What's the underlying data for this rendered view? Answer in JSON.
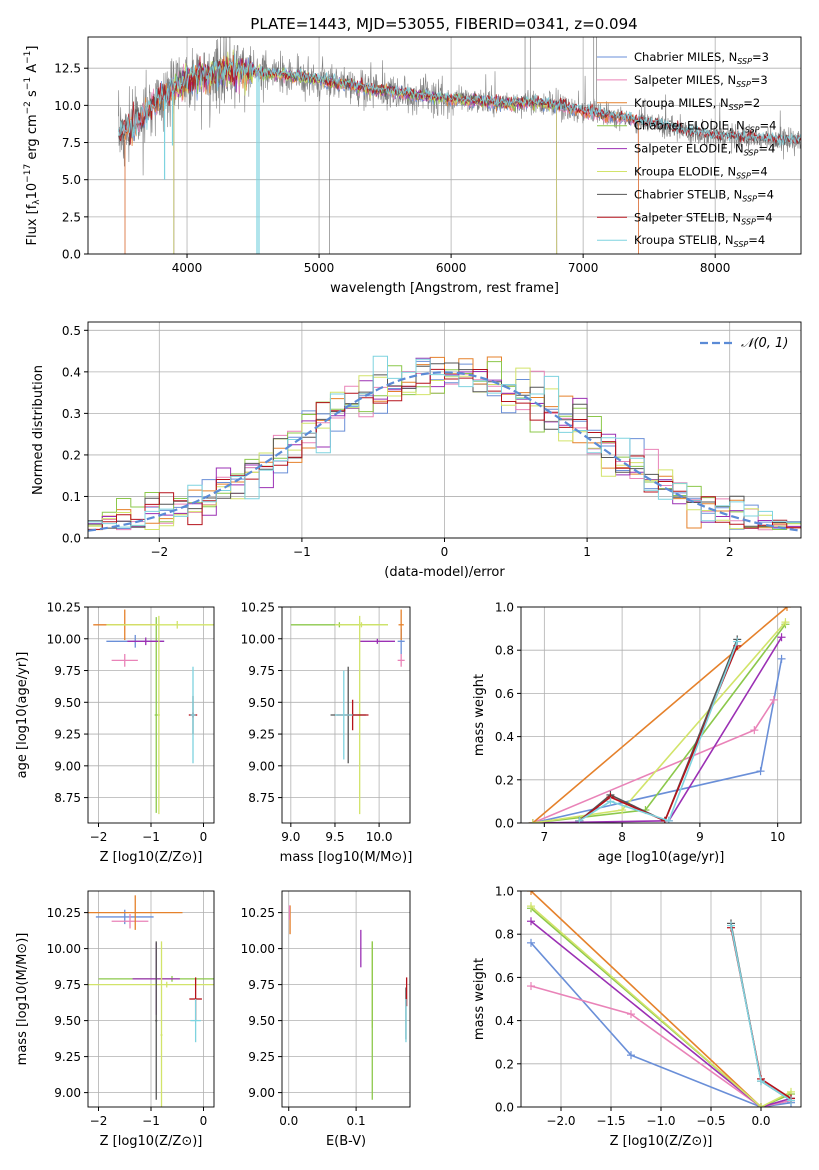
{
  "figure_title": "PLATE=1443, MJD=53055, FIBERID=0341, z=0.094",
  "colors": {
    "Chabrier MILES": "#6a8fd8",
    "Salpeter MILES": "#e983b8",
    "Kroupa MILES": "#e5812b",
    "Chabrier ELODIE": "#8cc84b",
    "Salpeter ELODIE": "#9b30b4",
    "Kroupa ELODIE": "#d2e46a",
    "Chabrier STELIB": "#555555",
    "Salpeter STELIB": "#b5121b",
    "Kroupa STELIB": "#7ed3df",
    "data": "#808080",
    "normal": "#5b8bd6"
  },
  "chart_data": [
    {
      "id": "spectrum",
      "type": "line",
      "title": "",
      "xlabel": "wavelength [Angstrom, rest frame]",
      "ylabel": "Flux [f",
      "xlim": [
        3250,
        8650
      ],
      "ylim": [
        0,
        14.6
      ],
      "xticks": [
        4000,
        5000,
        6000,
        7000,
        8000
      ],
      "yticks": [
        0.0,
        2.5,
        5.0,
        7.5,
        10.0,
        12.5
      ],
      "legend": {
        "position": "top-right",
        "entries": [
          {
            "name": "Chabrier MILES, N",
            "sub": "SSP",
            "suffix": "=3"
          },
          {
            "name": "Salpeter MILES, N",
            "sub": "SSP",
            "suffix": "=3"
          },
          {
            "name": "Kroupa MILES, N",
            "sub": "SSP",
            "suffix": "=2"
          },
          {
            "name": "Chabrier ELODIE, N",
            "sub": "SSP",
            "suffix": "=4"
          },
          {
            "name": "Salpeter ELODIE, N",
            "sub": "SSP",
            "suffix": "=4"
          },
          {
            "name": "Kroupa ELODIE, N",
            "sub": "SSP",
            "suffix": "=4"
          },
          {
            "name": "Chabrier STELIB, N",
            "sub": "SSP",
            "suffix": "=4"
          },
          {
            "name": "Salpeter STELIB, N",
            "sub": "SSP",
            "suffix": "=4"
          },
          {
            "name": "Kroupa STELIB, N",
            "sub": "SSP",
            "suffix": "=4"
          }
        ]
      },
      "continuum_x": [
        3480,
        3600,
        3800,
        4000,
        4200,
        4400,
        4600,
        4800,
        5000,
        5200,
        5400,
        5600,
        5800,
        6000,
        6200,
        6400,
        6600,
        6800,
        7000,
        7200,
        7400,
        7600,
        7800,
        8000,
        8200,
        8400,
        8600
      ],
      "continuum_y": [
        8.0,
        8.6,
        10.5,
        11.6,
        12.2,
        12.3,
        12.2,
        12.0,
        11.7,
        11.4,
        11.1,
        10.9,
        10.6,
        10.4,
        10.3,
        10.1,
        10.2,
        10.0,
        9.6,
        9.3,
        9.0,
        8.6,
        8.2,
        7.9,
        7.8,
        7.7,
        7.6
      ],
      "model_cutoffs": [
        {
          "model": "Kroupa MILES",
          "xmin": 3530,
          "xmax": 7420
        },
        {
          "model": "Chabrier MILES",
          "xmin": 3530,
          "xmax": 7420
        },
        {
          "model": "Salpeter MILES",
          "xmin": 3530,
          "xmax": 7420
        },
        {
          "model": "Kroupa ELODIE",
          "xmin": 3900,
          "xmax": 6800
        },
        {
          "model": "Chabrier ELODIE",
          "xmin": 3900,
          "xmax": 6800
        },
        {
          "model": "Salpeter ELODIE",
          "xmin": 3900,
          "xmax": 6800
        }
      ]
    },
    {
      "id": "residuals",
      "type": "histogram",
      "title": "",
      "xlabel": "(data-model)/error",
      "ylabel": "Normed distribution",
      "xlim": [
        -2.5,
        2.5
      ],
      "ylim": [
        0,
        0.52
      ],
      "xticks": [
        -2,
        -1,
        0,
        1,
        2
      ],
      "yticks": [
        0.0,
        0.1,
        0.2,
        0.3,
        0.4,
        0.5
      ],
      "legend_label": "𝒩(0, 1)",
      "bin_width": 0.1,
      "bin_start": -2.5
    },
    {
      "id": "age_vs_Z",
      "type": "errorbar",
      "xlabel": "Z [log10(Z/Z⊙)]",
      "ylabel": "age  [log10(age/yr)]",
      "xlim": [
        -2.2,
        0.2
      ],
      "ylim": [
        8.55,
        10.25
      ],
      "xticks": [
        -2,
        -1,
        0
      ],
      "yticks": [
        8.75,
        9.0,
        9.25,
        9.5,
        9.75,
        10.0,
        10.25
      ],
      "points": [
        {
          "model": "Chabrier MILES",
          "x": -1.3,
          "y": 9.98,
          "xerr": 0.55,
          "yerr": 0.05
        },
        {
          "model": "Salpeter MILES",
          "x": -1.5,
          "y": 9.83,
          "xerr": 0.25,
          "yerr": 0.05
        },
        {
          "model": "Kroupa MILES",
          "x": -1.5,
          "y": 10.11,
          "xerr": 0.6,
          "yerr": 0.12
        },
        {
          "model": "Chabrier ELODIE",
          "x": -0.9,
          "y": 9.4,
          "xerr": 0.03,
          "yerr": 0.77
        },
        {
          "model": "Salpeter ELODIE",
          "x": -1.1,
          "y": 9.98,
          "xerr": 0.35,
          "yerr": 0.03
        },
        {
          "model": "Kroupa ELODIE",
          "x": -0.5,
          "y": 10.11,
          "xerr": 1.35,
          "yerr": 0.03
        },
        {
          "model": "Chabrier STELIB",
          "x": -0.2,
          "y": 9.4,
          "xerr": 0.05,
          "yerr": 0.15
        },
        {
          "model": "Salpeter STELIB",
          "x": -0.2,
          "y": 9.4,
          "xerr": 0.08,
          "yerr": 0.02
        },
        {
          "model": "Kroupa STELIB",
          "x": -0.2,
          "y": 9.4,
          "xerr": 0.05,
          "yerr": 0.38
        },
        {
          "model": "Kroupa ELODIE",
          "x": -0.85,
          "y": 9.4,
          "xerr": 0.02,
          "yerr": 0.78
        }
      ]
    },
    {
      "id": "age_vs_mass",
      "type": "errorbar",
      "xlabel": "mass [log10(M/M⊙)]",
      "ylabel": "",
      "xlim": [
        8.9,
        10.35
      ],
      "ylim": [
        8.55,
        10.25
      ],
      "xticks": [
        9.0,
        9.5,
        10.0
      ],
      "yticks": [
        8.75,
        9.0,
        9.25,
        9.5,
        9.75,
        10.0,
        10.25
      ],
      "points": [
        {
          "model": "Chabrier MILES",
          "x": 10.25,
          "y": 9.98,
          "xerr": 0.04,
          "yerr": 0.1
        },
        {
          "model": "Salpeter MILES",
          "x": 10.25,
          "y": 9.83,
          "xerr": 0.04,
          "yerr": 0.05
        },
        {
          "model": "Kroupa MILES",
          "x": 10.25,
          "y": 10.11,
          "xerr": 0.03,
          "yerr": 0.12
        },
        {
          "model": "Chabrier ELODIE",
          "x": 9.55,
          "y": 10.11,
          "xerr": 0.55,
          "yerr": 0.02
        },
        {
          "model": "Salpeter ELODIE",
          "x": 9.98,
          "y": 9.98,
          "xerr": 0.2,
          "yerr": 0.02
        },
        {
          "model": "Kroupa ELODIE",
          "x": 9.78,
          "y": 9.4,
          "xerr": 0.02,
          "yerr": 0.78
        },
        {
          "model": "Chabrier STELIB",
          "x": 9.65,
          "y": 9.4,
          "xerr": 0.2,
          "yerr": 0.38
        },
        {
          "model": "Salpeter STELIB",
          "x": 9.7,
          "y": 9.4,
          "xerr": 0.18,
          "yerr": 0.12
        },
        {
          "model": "Kroupa STELIB",
          "x": 9.6,
          "y": 9.4,
          "xerr": 0.1,
          "yerr": 0.35
        },
        {
          "model": "Kroupa ELODIE",
          "x": 9.8,
          "y": 10.11,
          "xerr": 0.3,
          "yerr": 0.02
        }
      ]
    },
    {
      "id": "weight_vs_age",
      "type": "line",
      "xlabel": "age  [log10(age/yr)]",
      "ylabel": "mass weight",
      "xlim": [
        6.7,
        10.3
      ],
      "ylim": [
        0.0,
        1.0
      ],
      "xticks": [
        7,
        8,
        9,
        10
      ],
      "yticks": [
        0.0,
        0.2,
        0.4,
        0.6,
        0.8,
        1.0
      ],
      "series": [
        {
          "model": "Chabrier MILES",
          "x": [
            6.85,
            9.78,
            10.05
          ],
          "y": [
            0.0,
            0.24,
            0.76
          ]
        },
        {
          "model": "Salpeter MILES",
          "x": [
            6.85,
            9.7,
            9.95
          ],
          "y": [
            0.0,
            0.43,
            0.57
          ]
        },
        {
          "model": "Kroupa MILES",
          "x": [
            6.85,
            10.12
          ],
          "y": [
            0.0,
            1.0
          ]
        },
        {
          "model": "Chabrier ELODIE",
          "x": [
            6.85,
            8.3,
            10.1
          ],
          "y": [
            0.0,
            0.06,
            0.92
          ]
        },
        {
          "model": "Salpeter ELODIE",
          "x": [
            6.85,
            8.6,
            10.05
          ],
          "y": [
            0.0,
            0.01,
            0.86
          ]
        },
        {
          "model": "Kroupa ELODIE",
          "x": [
            6.85,
            8.0,
            10.1
          ],
          "y": [
            0.0,
            0.06,
            0.93
          ]
        },
        {
          "model": "Chabrier STELIB",
          "x": [
            7.45,
            7.85,
            8.55,
            9.48
          ],
          "y": [
            0.01,
            0.13,
            0.01,
            0.85
          ]
        },
        {
          "model": "Salpeter STELIB",
          "x": [
            7.45,
            7.85,
            8.55,
            9.48
          ],
          "y": [
            0.01,
            0.12,
            0.01,
            0.82
          ]
        },
        {
          "model": "Kroupa STELIB",
          "x": [
            7.45,
            7.85,
            8.6,
            9.48
          ],
          "y": [
            0.01,
            0.1,
            0.01,
            0.84
          ]
        }
      ]
    },
    {
      "id": "mass_vs_Z",
      "type": "errorbar",
      "xlabel": "Z [log10(Z/Z⊙)]",
      "ylabel": "mass [log10(M/M⊙)]",
      "xlim": [
        -2.2,
        0.2
      ],
      "ylim": [
        8.9,
        10.4
      ],
      "xticks": [
        -2,
        -1,
        0
      ],
      "yticks": [
        9.0,
        9.25,
        9.5,
        9.75,
        10.0,
        10.25
      ],
      "points": [
        {
          "model": "Chabrier MILES",
          "x": -1.5,
          "y": 10.22,
          "xerr": 0.55,
          "yerr": 0.05
        },
        {
          "model": "Salpeter MILES",
          "x": -1.4,
          "y": 10.19,
          "xerr": 0.35,
          "yerr": 0.05
        },
        {
          "model": "Kroupa MILES",
          "x": -1.3,
          "y": 10.25,
          "xerr": 0.9,
          "yerr": 0.12
        },
        {
          "model": "Chabrier ELODIE",
          "x": -0.6,
          "y": 9.79,
          "xerr": 1.4,
          "yerr": 0.02
        },
        {
          "model": "Salpeter ELODIE",
          "x": -0.9,
          "y": 9.79,
          "xerr": 0.45,
          "yerr": 0.25
        },
        {
          "model": "Kroupa ELODIE",
          "x": -0.7,
          "y": 9.75,
          "xerr": 1.5,
          "yerr": 0.02
        },
        {
          "model": "Chabrier STELIB",
          "x": -0.9,
          "y": 9.5,
          "xerr": 0.02,
          "yerr": 0.55
        },
        {
          "model": "Salpeter STELIB",
          "x": -0.15,
          "y": 9.65,
          "xerr": 0.12,
          "yerr": 0.15
        },
        {
          "model": "Kroupa STELIB",
          "x": -0.15,
          "y": 9.5,
          "xerr": 0.1,
          "yerr": 0.15
        },
        {
          "model": "Kroupa ELODIE",
          "x": -0.8,
          "y": 9.4,
          "xerr": 0.02,
          "yerr": 0.65
        }
      ]
    },
    {
      "id": "mass_vs_EBV",
      "type": "errorbar",
      "xlabel": "E(B-V)",
      "ylabel": "",
      "xlim": [
        -0.01,
        0.18
      ],
      "ylim": [
        8.9,
        10.4
      ],
      "xticks": [
        0.0,
        0.1
      ],
      "yticks": [
        9.0,
        9.25,
        9.5,
        9.75,
        10.0,
        10.25
      ],
      "points": [
        {
          "model": "Kroupa MILES",
          "x": 0.002,
          "y": 10.2,
          "xerr": 0.0,
          "yerr": 0.1
        },
        {
          "model": "Salpeter MILES",
          "x": 0.001,
          "y": 10.25,
          "xerr": 0.0,
          "yerr": 0.05
        },
        {
          "model": "Salpeter ELODIE",
          "x": 0.107,
          "y": 10.0,
          "xerr": 0.0,
          "yerr": 0.13
        },
        {
          "model": "Kroupa ELODIE",
          "x": 0.124,
          "y": 9.75,
          "xerr": 0.0,
          "yerr": 0.3
        },
        {
          "model": "Chabrier ELODIE",
          "x": 0.124,
          "y": 9.5,
          "xerr": 0.0,
          "yerr": 0.55
        },
        {
          "model": "Chabrier STELIB",
          "x": 0.174,
          "y": 9.55,
          "xerr": 0.0,
          "yerr": 0.18
        },
        {
          "model": "Salpeter STELIB",
          "x": 0.175,
          "y": 9.7,
          "xerr": 0.0,
          "yerr": 0.1
        },
        {
          "model": "Kroupa STELIB",
          "x": 0.174,
          "y": 9.5,
          "xerr": 0.0,
          "yerr": 0.15
        }
      ]
    },
    {
      "id": "weight_vs_Z",
      "type": "line",
      "xlabel": "Z [log10(Z/Z⊙)]",
      "ylabel": "mass weight",
      "xlim": [
        -2.4,
        0.4
      ],
      "ylim": [
        0.0,
        1.0
      ],
      "xticks": [
        -2.0,
        -1.5,
        -1.0,
        -0.5,
        0.0
      ],
      "yticks": [
        0.0,
        0.2,
        0.4,
        0.6,
        0.8,
        1.0
      ],
      "series": [
        {
          "model": "Chabrier MILES",
          "x": [
            -2.3,
            -1.3,
            0.0,
            0.3
          ],
          "y": [
            0.76,
            0.24,
            0.0,
            0.02
          ]
        },
        {
          "model": "Salpeter MILES",
          "x": [
            -2.3,
            -1.3,
            0.0,
            0.3
          ],
          "y": [
            0.56,
            0.43,
            0.0,
            0.03
          ]
        },
        {
          "model": "Kroupa MILES",
          "x": [
            -2.3,
            0.0
          ],
          "y": [
            1.0,
            0.0
          ]
        },
        {
          "model": "Chabrier ELODIE",
          "x": [
            -2.3,
            0.0,
            0.3
          ],
          "y": [
            0.92,
            0.0,
            0.06
          ]
        },
        {
          "model": "Salpeter ELODIE",
          "x": [
            -2.3,
            0.0,
            0.3
          ],
          "y": [
            0.86,
            0.0,
            0.04
          ]
        },
        {
          "model": "Kroupa ELODIE",
          "x": [
            -2.3,
            0.0,
            0.3
          ],
          "y": [
            0.93,
            0.0,
            0.07
          ]
        },
        {
          "model": "Chabrier STELIB",
          "x": [
            -0.3,
            0.0,
            0.3
          ],
          "y": [
            0.85,
            0.12,
            0.03
          ]
        },
        {
          "model": "Salpeter STELIB",
          "x": [
            -0.3,
            0.0,
            0.3
          ],
          "y": [
            0.83,
            0.13,
            0.04
          ]
        },
        {
          "model": "Kroupa STELIB",
          "x": [
            -0.3,
            0.0,
            0.3
          ],
          "y": [
            0.84,
            0.12,
            0.03
          ]
        }
      ]
    }
  ]
}
